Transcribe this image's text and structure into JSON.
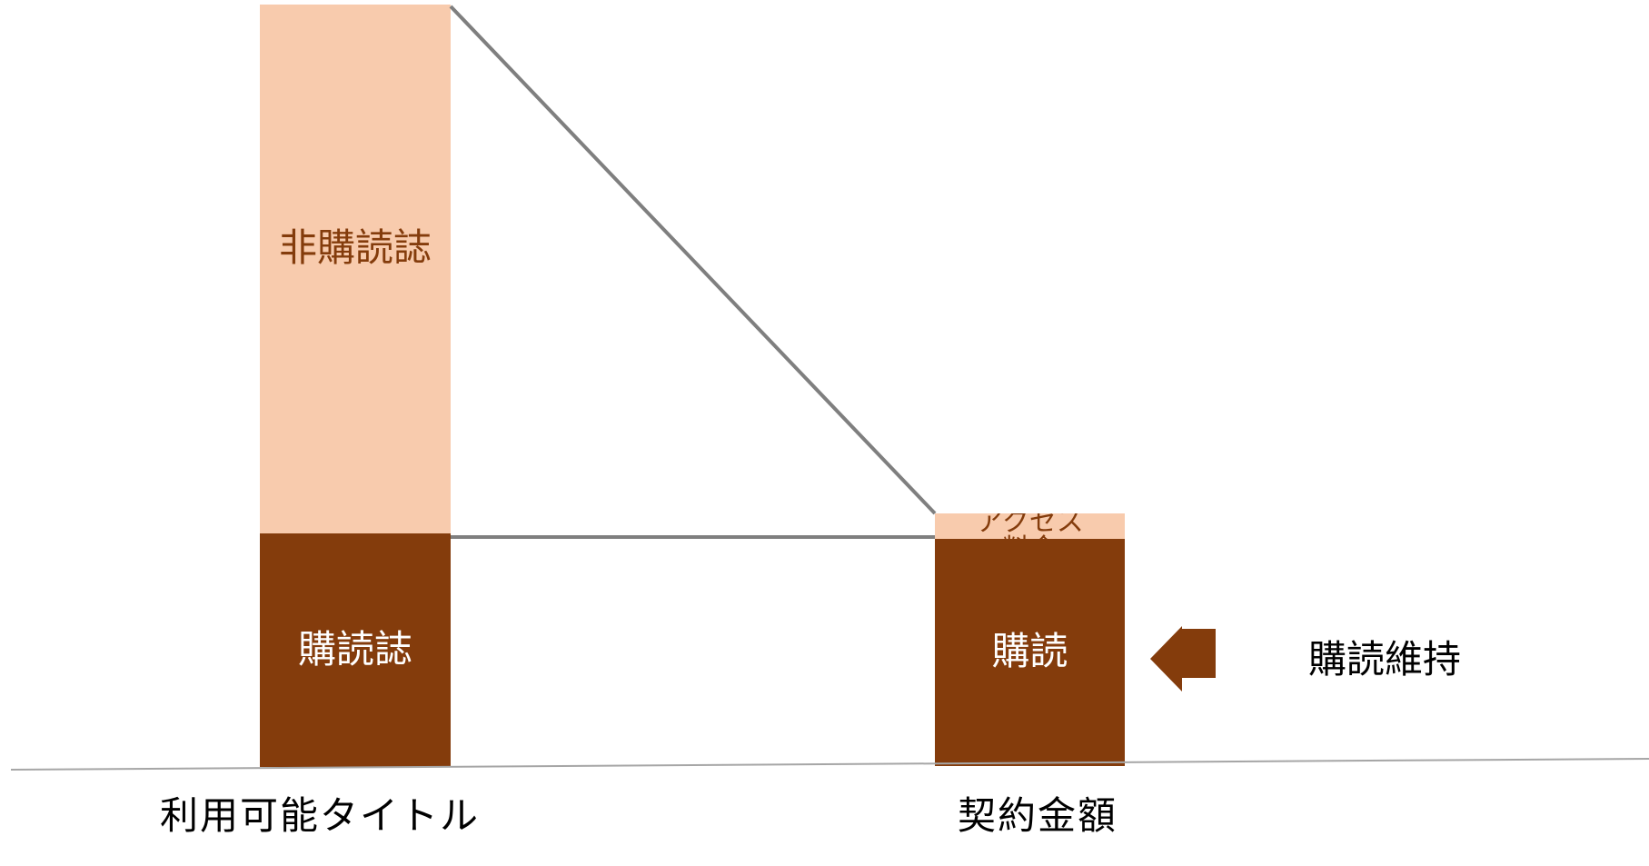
{
  "diagram": {
    "left_bar": {
      "upper_label": "非購読誌",
      "lower_label": "購読誌",
      "axis_label": "利用可能タイトル"
    },
    "right_bar": {
      "upper_label": "アクセス料金",
      "lower_label": "購読",
      "axis_label": "契約金額"
    },
    "annotation": {
      "label": "購読維持",
      "icon": "left-arrow-icon"
    },
    "colors": {
      "light": "#f8cbad",
      "dark": "#843c0c",
      "line": "#7f7f7f",
      "axis": "#a6a6a6"
    }
  }
}
